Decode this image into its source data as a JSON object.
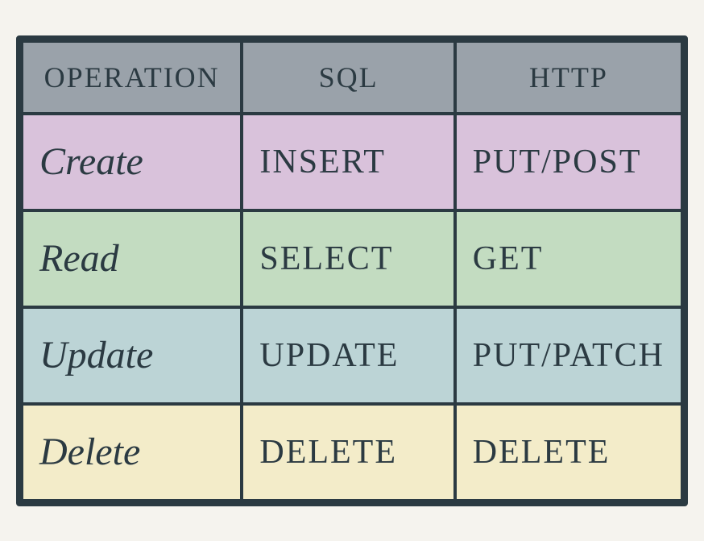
{
  "table": {
    "type": "table",
    "columns": [
      "OPERATION",
      "SQL",
      "HTTP"
    ],
    "column_widths_pct": [
      34,
      35,
      31
    ],
    "header_bg": "#9aa2aa",
    "header_text_color": "#2b3a42",
    "header_fontsize": 36,
    "border_color": "#2b3a42",
    "border_width": 4,
    "outer_border_width": 5,
    "cell_fontsize": 42,
    "operation_cell_fontsize": 48,
    "text_color": "#2b3a42",
    "background_color": "#f5f3ee",
    "rows": [
      {
        "operation": "Create",
        "sql": "INSERT",
        "http": "PUT/POST",
        "bg": "#d9c2db"
      },
      {
        "operation": "Read",
        "sql": "SELECT",
        "http": "GET",
        "bg": "#c3dcc1"
      },
      {
        "operation": "Update",
        "sql": "UPDATE",
        "http": "PUT/PATCH",
        "bg": "#bcd4d6"
      },
      {
        "operation": "Delete",
        "sql": "DELETE",
        "http": "DELETE",
        "bg": "#f3ecc9"
      }
    ]
  }
}
